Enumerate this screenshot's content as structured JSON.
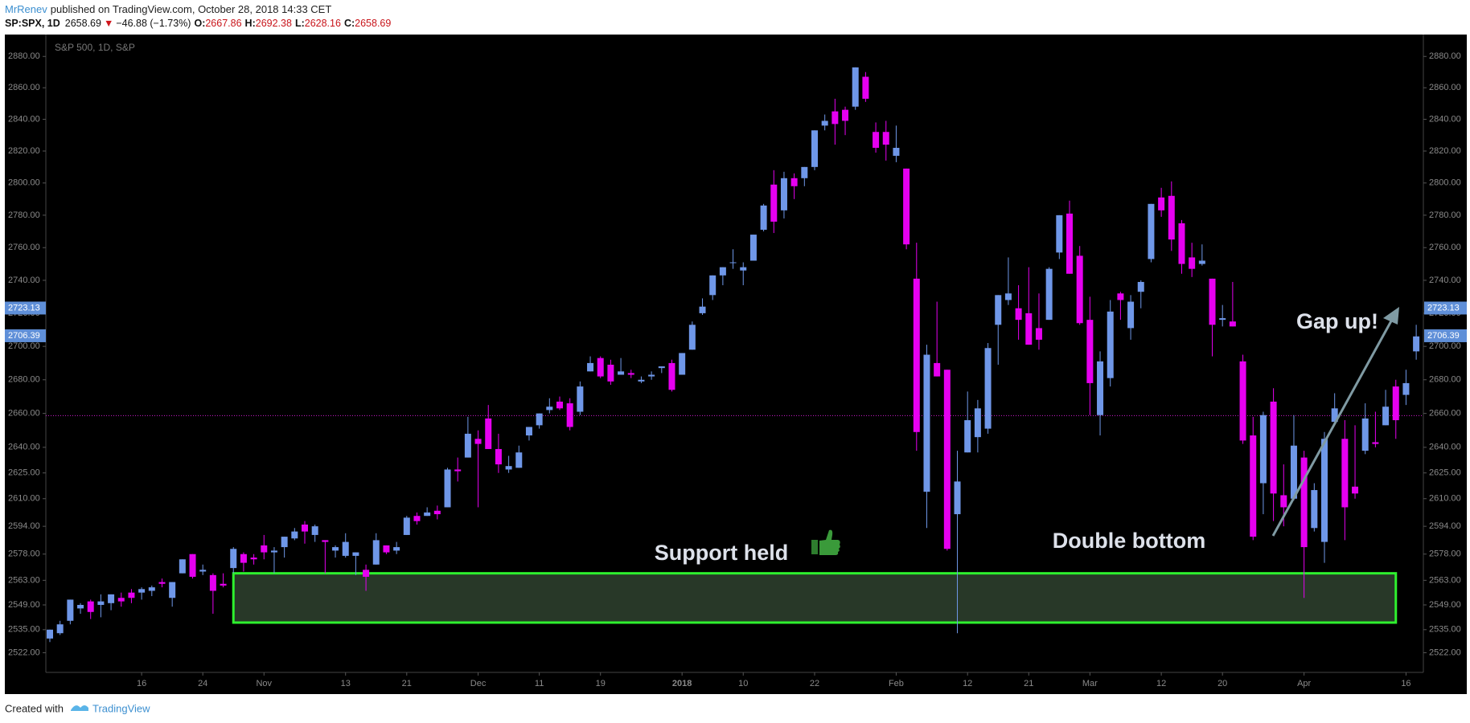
{
  "header": {
    "author": "MrRenev",
    "published": "published on TradingView.com, October 28, 2018 14:33 CET",
    "symbol": "SP:SPX, 1D",
    "price": "2658.69",
    "direction": "▼",
    "change": "−46.88 (−1.73%)",
    "quotes": [
      {
        "label": "O:",
        "value": "2667.86"
      },
      {
        "label": "H:",
        "value": "2692.38"
      },
      {
        "label": "L:",
        "value": "2628.16"
      },
      {
        "label": "C:",
        "value": "2658.69"
      }
    ]
  },
  "footer": {
    "created": "Created with",
    "brand": "TradingView"
  },
  "chart_data": {
    "type": "candlestick",
    "legend": "S&P 500, 1D, S&P",
    "log_scale": true,
    "up_color": "#6f97e8",
    "down_color": "#e600f0",
    "x": [
      "2017-10-03",
      "2017-10-04",
      "2017-10-05",
      "2017-10-06",
      "2017-10-09",
      "2017-10-10",
      "2017-10-11",
      "2017-10-12",
      "2017-10-13",
      "2017-10-16",
      "2017-10-17",
      "2017-10-18",
      "2017-10-19",
      "2017-10-20",
      "2017-10-23",
      "2017-10-24",
      "2017-10-25",
      "2017-10-26",
      "2017-10-27",
      "2017-10-30",
      "2017-10-31",
      "2017-11-01",
      "2017-11-02",
      "2017-11-03",
      "2017-11-06",
      "2017-11-07",
      "2017-11-08",
      "2017-11-09",
      "2017-11-10",
      "2017-11-13",
      "2017-11-14",
      "2017-11-15",
      "2017-11-16",
      "2017-11-17",
      "2017-11-20",
      "2017-11-21",
      "2017-11-22",
      "2017-11-24",
      "2017-11-27",
      "2017-11-28",
      "2017-11-29",
      "2017-11-30",
      "2017-12-01",
      "2017-12-04",
      "2017-12-05",
      "2017-12-06",
      "2017-12-07",
      "2017-12-08",
      "2017-12-11",
      "2017-12-12",
      "2017-12-13",
      "2017-12-14",
      "2017-12-15",
      "2017-12-18",
      "2017-12-19",
      "2017-12-20",
      "2017-12-21",
      "2017-12-22",
      "2017-12-26",
      "2017-12-27",
      "2017-12-28",
      "2017-12-29",
      "2018-01-02",
      "2018-01-03",
      "2018-01-04",
      "2018-01-05",
      "2018-01-08",
      "2018-01-09",
      "2018-01-10",
      "2018-01-11",
      "2018-01-12",
      "2018-01-16",
      "2018-01-17",
      "2018-01-18",
      "2018-01-19",
      "2018-01-22",
      "2018-01-23",
      "2018-01-24",
      "2018-01-25",
      "2018-01-26",
      "2018-01-29",
      "2018-01-30",
      "2018-01-31",
      "2018-02-01",
      "2018-02-02",
      "2018-02-05",
      "2018-02-06",
      "2018-02-07",
      "2018-02-08",
      "2018-02-09",
      "2018-02-12",
      "2018-02-13",
      "2018-02-14",
      "2018-02-15",
      "2018-02-16",
      "2018-02-20",
      "2018-02-21",
      "2018-02-22",
      "2018-02-23",
      "2018-02-26",
      "2018-02-27",
      "2018-02-28",
      "2018-03-01",
      "2018-03-02",
      "2018-03-05",
      "2018-03-06",
      "2018-03-07",
      "2018-03-08",
      "2018-03-09",
      "2018-03-12",
      "2018-03-13",
      "2018-03-14",
      "2018-03-15",
      "2018-03-16",
      "2018-03-19",
      "2018-03-20",
      "2018-03-21",
      "2018-03-22",
      "2018-03-23",
      "2018-03-26",
      "2018-03-27",
      "2018-03-28",
      "2018-03-29",
      "2018-04-02",
      "2018-04-03",
      "2018-04-04",
      "2018-04-05",
      "2018-04-06",
      "2018-04-09",
      "2018-04-10",
      "2018-04-11",
      "2018-04-12",
      "2018-04-13",
      "2018-04-16",
      "2018-04-17"
    ],
    "ohlc": [
      [
        2530,
        2535,
        2528,
        2535
      ],
      [
        2533,
        2540,
        2532,
        2538
      ],
      [
        2540,
        2552,
        2538,
        2552
      ],
      [
        2547,
        2550,
        2544,
        2549
      ],
      [
        2551,
        2552,
        2541,
        2545
      ],
      [
        2549,
        2555,
        2542,
        2551
      ],
      [
        2550,
        2555,
        2546,
        2555
      ],
      [
        2553,
        2556,
        2548,
        2551
      ],
      [
        2556,
        2558,
        2550,
        2553
      ],
      [
        2556,
        2559,
        2552,
        2558
      ],
      [
        2557,
        2560,
        2554,
        2559
      ],
      [
        2562,
        2564,
        2559,
        2561
      ],
      [
        2553,
        2562,
        2548,
        2562
      ],
      [
        2567,
        2575,
        2567,
        2575
      ],
      [
        2578,
        2578,
        2564,
        2565
      ],
      [
        2568,
        2572,
        2566,
        2569
      ],
      [
        2566,
        2567,
        2544,
        2557
      ],
      [
        2561,
        2567,
        2559,
        2560
      ],
      [
        2570,
        2582,
        2567,
        2581
      ],
      [
        2578,
        2579,
        2568,
        2573
      ],
      [
        2576,
        2578,
        2572,
        2575
      ],
      [
        2583,
        2589,
        2575,
        2579
      ],
      [
        2579,
        2582,
        2567,
        2580
      ],
      [
        2582,
        2588,
        2576,
        2588
      ],
      [
        2587,
        2593,
        2586,
        2591
      ],
      [
        2595,
        2597,
        2584,
        2591
      ],
      [
        2589,
        2595,
        2585,
        2594
      ],
      [
        2586,
        2586,
        2567,
        2585
      ],
      [
        2580,
        2583,
        2576,
        2582
      ],
      [
        2577,
        2590,
        2576,
        2585
      ],
      [
        2577,
        2579,
        2566,
        2579
      ],
      [
        2569,
        2572,
        2557,
        2565
      ],
      [
        2572,
        2590,
        2572,
        2586
      ],
      [
        2583,
        2583,
        2578,
        2579
      ],
      [
        2580,
        2585,
        2578,
        2582
      ],
      [
        2589,
        2600,
        2589,
        2599
      ],
      [
        2600,
        2602,
        2595,
        2597
      ],
      [
        2600,
        2605,
        2600,
        2602
      ],
      [
        2603,
        2606,
        2598,
        2601
      ],
      [
        2605,
        2628,
        2605,
        2627
      ],
      [
        2627,
        2634,
        2620,
        2626
      ],
      [
        2634,
        2658,
        2634,
        2648
      ],
      [
        2645,
        2650,
        2605,
        2642
      ],
      [
        2657,
        2665,
        2639,
        2639
      ],
      [
        2639,
        2648,
        2625,
        2630
      ],
      [
        2627,
        2635,
        2625,
        2629
      ],
      [
        2628,
        2641,
        2628,
        2637
      ],
      [
        2647,
        2652,
        2644,
        2652
      ],
      [
        2653,
        2660,
        2651,
        2660
      ],
      [
        2662,
        2669,
        2660,
        2664
      ],
      [
        2667,
        2670,
        2662,
        2663
      ],
      [
        2666,
        2669,
        2650,
        2652
      ],
      [
        2661,
        2679,
        2659,
        2676
      ],
      [
        2685,
        2694,
        2685,
        2690
      ],
      [
        2693,
        2694,
        2681,
        2682
      ],
      [
        2689,
        2692,
        2677,
        2679
      ],
      [
        2683,
        2693,
        2683,
        2685
      ],
      [
        2684,
        2686,
        2681,
        2683
      ],
      [
        2679,
        2682,
        2678,
        2680
      ],
      [
        2682,
        2685,
        2680,
        2683
      ],
      [
        2687,
        2688,
        2684,
        2688
      ],
      [
        2690,
        2692,
        2673,
        2674
      ],
      [
        2683,
        2696,
        2683,
        2696
      ],
      [
        2698,
        2715,
        2698,
        2713
      ],
      [
        2720,
        2729,
        2719,
        2724
      ],
      [
        2731,
        2743,
        2728,
        2743
      ],
      [
        2743,
        2748,
        2737,
        2748
      ],
      [
        2751,
        2759,
        2747,
        2751
      ],
      [
        2746,
        2751,
        2737,
        2748
      ],
      [
        2752,
        2768,
        2752,
        2768
      ],
      [
        2771,
        2787,
        2770,
        2786
      ],
      [
        2799,
        2808,
        2769,
        2776
      ],
      [
        2783,
        2807,
        2778,
        2803
      ],
      [
        2803,
        2806,
        2790,
        2798
      ],
      [
        2803,
        2810,
        2798,
        2810
      ],
      [
        2810,
        2833,
        2808,
        2833
      ],
      [
        2836,
        2843,
        2833,
        2839
      ],
      [
        2845,
        2853,
        2824,
        2837
      ],
      [
        2846,
        2848,
        2830,
        2839
      ],
      [
        2848,
        2873,
        2846,
        2873
      ],
      [
        2867,
        2870,
        2851,
        2853
      ],
      [
        2832,
        2838,
        2819,
        2822
      ],
      [
        2832,
        2839,
        2814,
        2824
      ],
      [
        2817,
        2836,
        2813,
        2822
      ],
      [
        2809,
        2809,
        2759,
        2762
      ],
      [
        2741,
        2763,
        2638,
        2649
      ],
      [
        2614,
        2701,
        2593,
        2695
      ],
      [
        2690,
        2727,
        2682,
        2682
      ],
      [
        2686,
        2686,
        2580,
        2581
      ],
      [
        2601,
        2638,
        2533,
        2620
      ],
      [
        2637,
        2673,
        2637,
        2656
      ],
      [
        2646,
        2668,
        2637,
        2663
      ],
      [
        2651,
        2702,
        2648,
        2699
      ],
      [
        2713,
        2731,
        2689,
        2731
      ],
      [
        2728,
        2754,
        2725,
        2732
      ],
      [
        2723,
        2737,
        2704,
        2716
      ],
      [
        2720,
        2748,
        2701,
        2701
      ],
      [
        2711,
        2732,
        2698,
        2704
      ],
      [
        2716,
        2748,
        2716,
        2747
      ],
      [
        2757,
        2780,
        2753,
        2780
      ],
      [
        2781,
        2789,
        2744,
        2744
      ],
      [
        2755,
        2761,
        2713,
        2714
      ],
      [
        2716,
        2730,
        2659,
        2678
      ],
      [
        2659,
        2697,
        2647,
        2691
      ],
      [
        2681,
        2728,
        2676,
        2721
      ],
      [
        2732,
        2733,
        2716,
        2728
      ],
      [
        2711,
        2731,
        2704,
        2727
      ],
      [
        2733,
        2740,
        2723,
        2739
      ],
      [
        2753,
        2787,
        2751,
        2787
      ],
      [
        2791,
        2797,
        2779,
        2783
      ],
      [
        2792,
        2801,
        2758,
        2765
      ],
      [
        2775,
        2777,
        2744,
        2750
      ],
      [
        2754,
        2763,
        2742,
        2747
      ],
      [
        2750,
        2762,
        2749,
        2752
      ],
      [
        2741,
        2741,
        2694,
        2713
      ],
      [
        2716,
        2725,
        2712,
        2717
      ],
      [
        2715,
        2739,
        2712,
        2712
      ],
      [
        2691,
        2695,
        2642,
        2644
      ],
      [
        2647,
        2658,
        2586,
        2588
      ],
      [
        2619,
        2661,
        2601,
        2659
      ],
      [
        2667,
        2675,
        2597,
        2613
      ],
      [
        2612,
        2630,
        2594,
        2605
      ],
      [
        2610,
        2659,
        2609,
        2641
      ],
      [
        2634,
        2638,
        2553,
        2582
      ],
      [
        2593,
        2619,
        2591,
        2615
      ],
      [
        2585,
        2649,
        2573,
        2645
      ],
      [
        2655,
        2672,
        2655,
        2663
      ],
      [
        2645,
        2656,
        2586,
        2605
      ],
      [
        2617,
        2653,
        2610,
        2613
      ],
      [
        2638,
        2666,
        2636,
        2657
      ],
      [
        2643,
        2661,
        2640,
        2642
      ],
      [
        2653,
        2674,
        2653,
        2664
      ],
      [
        2676,
        2680,
        2645,
        2656
      ],
      [
        2671,
        2686,
        2665,
        2678
      ],
      [
        2697,
        2713,
        2692,
        2706
      ]
    ],
    "ylim": [
      2511,
      2892
    ],
    "yticks": [
      {
        "value": 2522,
        "label": "2522.00"
      },
      {
        "value": 2535,
        "label": "2535.00"
      },
      {
        "value": 2549,
        "label": "2549.00"
      },
      {
        "value": 2563,
        "label": "2563.00"
      },
      {
        "value": 2578,
        "label": "2578.00"
      },
      {
        "value": 2594,
        "label": "2594.00"
      },
      {
        "value": 2610,
        "label": "2610.00"
      },
      {
        "value": 2625,
        "label": "2625.00"
      },
      {
        "value": 2640,
        "label": "2640.00"
      },
      {
        "value": 2660,
        "label": "2660.00"
      },
      {
        "value": 2680,
        "label": "2680.00"
      },
      {
        "value": 2700,
        "label": "2700.00"
      },
      {
        "value": 2720,
        "label": "2720.00"
      },
      {
        "value": 2740,
        "label": "2740.00"
      },
      {
        "value": 2760,
        "label": "2760.00"
      },
      {
        "value": 2780,
        "label": "2780.00"
      },
      {
        "value": 2800,
        "label": "2800.00"
      },
      {
        "value": 2820,
        "label": "2820.00"
      },
      {
        "value": 2840,
        "label": "2840.00"
      },
      {
        "value": 2860,
        "label": "2860.00"
      },
      {
        "value": 2880,
        "label": "2880.00"
      }
    ],
    "xticks": [
      {
        "value": "2017-10-16",
        "label": "16"
      },
      {
        "value": "2017-10-24",
        "label": "24"
      },
      {
        "value": "2017-11-01",
        "label": "Nov"
      },
      {
        "value": "2017-11-13",
        "label": "13"
      },
      {
        "value": "2017-11-21",
        "label": "21"
      },
      {
        "value": "2017-12-01",
        "label": "Dec"
      },
      {
        "value": "2017-12-11",
        "label": "11"
      },
      {
        "value": "2017-12-19",
        "label": "19"
      },
      {
        "value": "2018-01-02",
        "label": "2018",
        "bold": true
      },
      {
        "value": "2018-01-10",
        "label": "10"
      },
      {
        "value": "2018-01-22",
        "label": "22"
      },
      {
        "value": "2018-02-01",
        "label": "Feb"
      },
      {
        "value": "2018-02-12",
        "label": "12"
      },
      {
        "value": "2018-02-21",
        "label": "21"
      },
      {
        "value": "2018-03-01",
        "label": "Mar"
      },
      {
        "value": "2018-03-12",
        "label": "12"
      },
      {
        "value": "2018-03-20",
        "label": "20"
      },
      {
        "value": "2018-04-02",
        "label": "Apr"
      },
      {
        "value": "2018-04-16",
        "label": "16"
      }
    ],
    "price_labels": [
      {
        "value": 2723.13,
        "label": "2723.13"
      },
      {
        "value": 2706.39,
        "label": "2706.39"
      }
    ],
    "price_line": 2658.69,
    "zone": {
      "start": "2017-10-27",
      "end": "2018-04-13",
      "top": 2567,
      "bottom": 2539
    },
    "annotations": [
      "Support held",
      "Double bottom",
      "Gap up!"
    ]
  }
}
